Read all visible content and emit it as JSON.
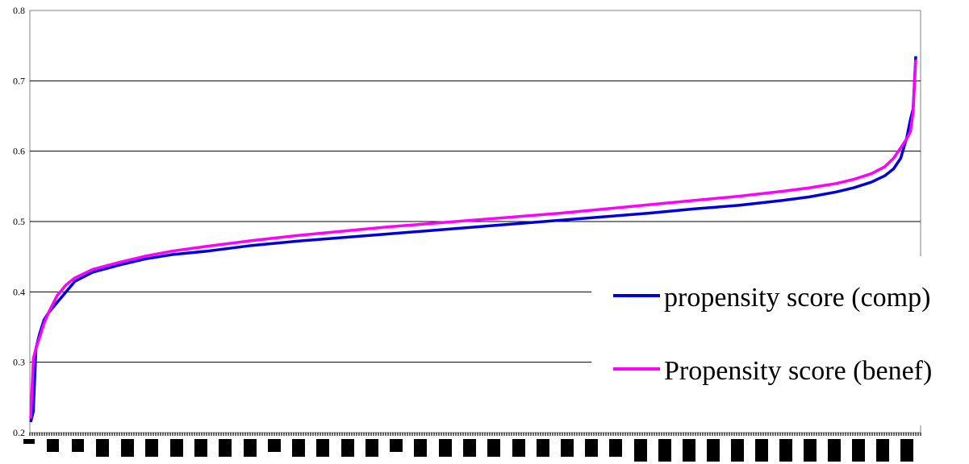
{
  "chart_data": {
    "type": "line",
    "title": "",
    "xlabel": "",
    "ylabel": "",
    "ylim": [
      0.2,
      0.8
    ],
    "yticks": [
      "0.2",
      "0.3",
      "0.4",
      "0.5",
      "0.6",
      "0.7",
      "0.8"
    ],
    "grid": "horizontal major lines",
    "legend_position": "right",
    "x_tick_labels": "illegible (rendered as black blocks)",
    "series": [
      {
        "name": "propensity score (comp)",
        "color": "#0000dd",
        "x": [
          0,
          0.3,
          0.6,
          1,
          1.5,
          2,
          3,
          4,
          5,
          7,
          10,
          13,
          16,
          20,
          25,
          30,
          35,
          40,
          45,
          50,
          55,
          60,
          65,
          70,
          75,
          80,
          85,
          88,
          91,
          93,
          95,
          96.5,
          97.5,
          98.3,
          99,
          99.4,
          99.7,
          100
        ],
        "values": [
          0.215,
          0.23,
          0.32,
          0.34,
          0.36,
          0.37,
          0.385,
          0.4,
          0.415,
          0.428,
          0.438,
          0.447,
          0.453,
          0.458,
          0.466,
          0.472,
          0.477,
          0.482,
          0.487,
          0.492,
          0.497,
          0.502,
          0.507,
          0.512,
          0.518,
          0.523,
          0.53,
          0.535,
          0.542,
          0.548,
          0.556,
          0.565,
          0.575,
          0.59,
          0.62,
          0.645,
          0.66,
          0.735
        ]
      },
      {
        "name": "Propensity score (benef)",
        "color": "#ff00ff",
        "x": [
          0,
          0.3,
          0.6,
          1,
          1.5,
          2,
          3,
          4,
          5,
          7,
          10,
          13,
          16,
          20,
          25,
          30,
          35,
          40,
          45,
          50,
          55,
          60,
          65,
          70,
          75,
          80,
          85,
          88,
          91,
          93,
          95,
          96.5,
          97.5,
          98.3,
          99,
          99.4,
          99.7,
          100
        ],
        "values": [
          0.22,
          0.305,
          0.32,
          0.335,
          0.355,
          0.37,
          0.395,
          0.41,
          0.42,
          0.432,
          0.442,
          0.451,
          0.458,
          0.465,
          0.473,
          0.48,
          0.486,
          0.492,
          0.497,
          0.502,
          0.507,
          0.512,
          0.518,
          0.524,
          0.53,
          0.536,
          0.543,
          0.548,
          0.554,
          0.56,
          0.568,
          0.578,
          0.59,
          0.605,
          0.618,
          0.628,
          0.655,
          0.73
        ]
      }
    ],
    "legend": {
      "items": [
        "propensity score (comp)",
        "Propensity score (benef)"
      ]
    }
  }
}
